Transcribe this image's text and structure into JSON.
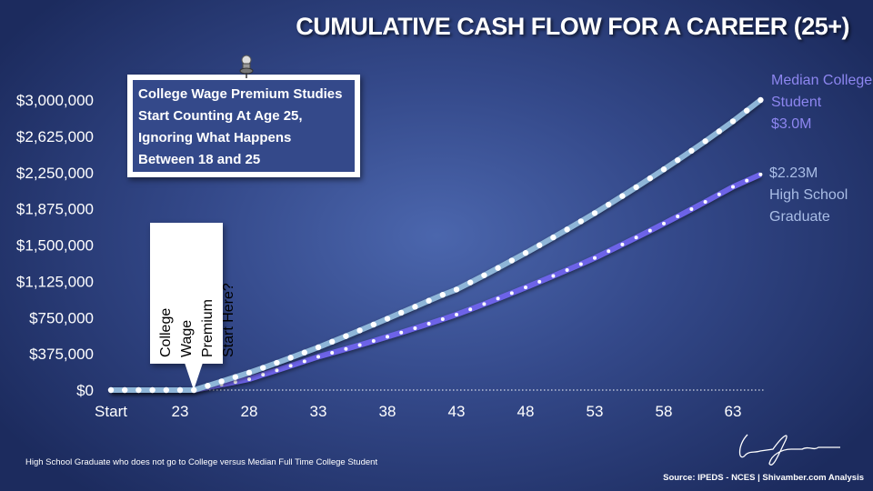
{
  "title": "CUMULATIVE CASH FLOW FOR A CAREER (25+)",
  "callouts": {
    "studies_lines": [
      "College Wage Premium Studies",
      "Start Counting At Age 25,",
      "Ignoring What Happens",
      "Between 18 and 25"
    ],
    "premium_question_lines": [
      "College",
      "Wage",
      "Premium",
      "Start Here?"
    ]
  },
  "series_labels": {
    "college_lines": [
      "Median College",
      "Student",
      "$3.0M"
    ],
    "hs_lines": [
      "$2.23M",
      "High School",
      "Graduate"
    ]
  },
  "footnote": "High School Graduate who does not go to College versus Median Full Time College Student",
  "source": "Source: IPEDS - NCES | Shivamber.com Analysis",
  "signature": "Lorne Shivamber",
  "icons": [
    "push-pin-icon"
  ],
  "chart_data": {
    "type": "line",
    "title": "CUMULATIVE CASH FLOW FOR A CAREER (25+)",
    "x": [
      "Start",
      19,
      20,
      21,
      22,
      23,
      24,
      25,
      26,
      27,
      28,
      29,
      30,
      31,
      32,
      33,
      34,
      35,
      36,
      37,
      38,
      39,
      40,
      41,
      42,
      43,
      44,
      45,
      46,
      47,
      48,
      49,
      50,
      51,
      52,
      53,
      54,
      55,
      56,
      57,
      58,
      59,
      60,
      61,
      62,
      63,
      64,
      65
    ],
    "x_tick_labels": [
      "Start",
      "23",
      "28",
      "33",
      "38",
      "43",
      "48",
      "53",
      "58",
      "63"
    ],
    "y_tick_labels": [
      "$0",
      "$375,000",
      "$750,000",
      "$1,125,000",
      "$1,500,000",
      "$1,875,000",
      "$2,250,000",
      "$2,625,000",
      "$3,000,000"
    ],
    "ylim": [
      0,
      3000000
    ],
    "grid": false,
    "series": [
      {
        "name": "Median College Student",
        "color": "#8fb6d8",
        "values": [
          0,
          0,
          0,
          0,
          0,
          0,
          0,
          45000,
          90000,
          135000,
          180000,
          230000,
          282000,
          335000,
          388000,
          442000,
          500000,
          558000,
          617000,
          677000,
          738000,
          800000,
          862000,
          924000,
          985000,
          1040000,
          1113000,
          1187000,
          1263000,
          1340000,
          1418000,
          1498000,
          1579000,
          1661000,
          1745000,
          1830000,
          1918000,
          2007000,
          2098000,
          2190000,
          2283000,
          2378000,
          2475000,
          2574000,
          2676000,
          2780000,
          2890000,
          3000000
        ]
      },
      {
        "name": "High School Graduate",
        "color": "#6d63e8",
        "values": [
          0,
          0,
          0,
          0,
          0,
          0,
          0,
          28000,
          56000,
          84000,
          113000,
          160000,
          205000,
          251000,
          298000,
          345000,
          385000,
          425000,
          466000,
          508000,
          551000,
          595000,
          640000,
          686000,
          733000,
          781000,
          835000,
          890000,
          946000,
          1003000,
          1061000,
          1120000,
          1180000,
          1241000,
          1303000,
          1366000,
          1436000,
          1506000,
          1577000,
          1649000,
          1722000,
          1796000,
          1871000,
          1947000,
          2024000,
          2102000,
          2166000,
          2230000
        ]
      }
    ]
  }
}
